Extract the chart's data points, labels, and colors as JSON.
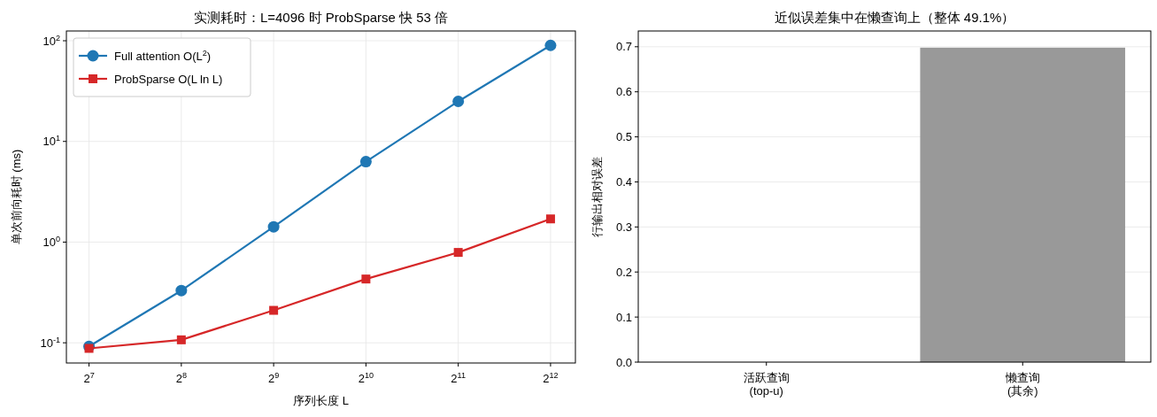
{
  "chart_data": [
    {
      "type": "line",
      "title": "实测耗时：L=4096 时 ProbSparse 快 53 倍",
      "xlabel": "序列长度 L",
      "ylabel": "单次前向耗时 (ms)",
      "log": "xy",
      "grid": true,
      "legend": "top left",
      "line_style": "solid",
      "x": [
        128,
        256,
        512,
        1024,
        2048,
        4096
      ],
      "xlim": [
        108,
        4936
      ],
      "xticks": [
        {
          "value": 128,
          "label": "2$^{7}$"
        },
        {
          "value": 256,
          "label": "2$^{8}$"
        },
        {
          "value": 512,
          "label": "2$^{9}$"
        },
        {
          "value": 1024,
          "label": "2$^{10}$"
        },
        {
          "value": 2048,
          "label": "2$^{11}$"
        },
        {
          "value": 4096,
          "label": "2$^{12}$"
        }
      ],
      "ylim": [
        0.063,
        125
      ],
      "yticks": [
        {
          "value": 0.1,
          "label": "10$^{-1}$"
        },
        {
          "value": 1,
          "label": "10$^{0}$"
        },
        {
          "value": 10,
          "label": "10$^{1}$"
        },
        {
          "value": 100,
          "label": "10$^{2}$"
        }
      ],
      "series": [
        {
          "name": "Full attention O(L$^{2}$)",
          "color": "#1f77b4",
          "marker": "circle",
          "values": [
            0.092,
            0.33,
            1.42,
            6.3,
            25,
            90
          ]
        },
        {
          "name": "ProbSparse O(L ln L)",
          "color": "#d62728",
          "marker": "square",
          "values": [
            0.088,
            0.107,
            0.21,
            0.43,
            0.79,
            1.7
          ]
        }
      ]
    },
    {
      "type": "bar",
      "title": "近似误差集中在懒查询上（整体 49.1%）",
      "ylabel": "行输出相对误差",
      "grid": "y",
      "categories": [
        "活跃查询\n(top-u)",
        "懒查询\n(其余)"
      ],
      "values": [
        0,
        0.698
      ],
      "color": "#999999",
      "ylim": [
        0,
        0.735
      ],
      "yticks": [
        {
          "value": 0,
          "label": "0.0"
        },
        0.1,
        0.2,
        0.3,
        0.4,
        0.5,
        0.6,
        0.7
      ]
    }
  ]
}
